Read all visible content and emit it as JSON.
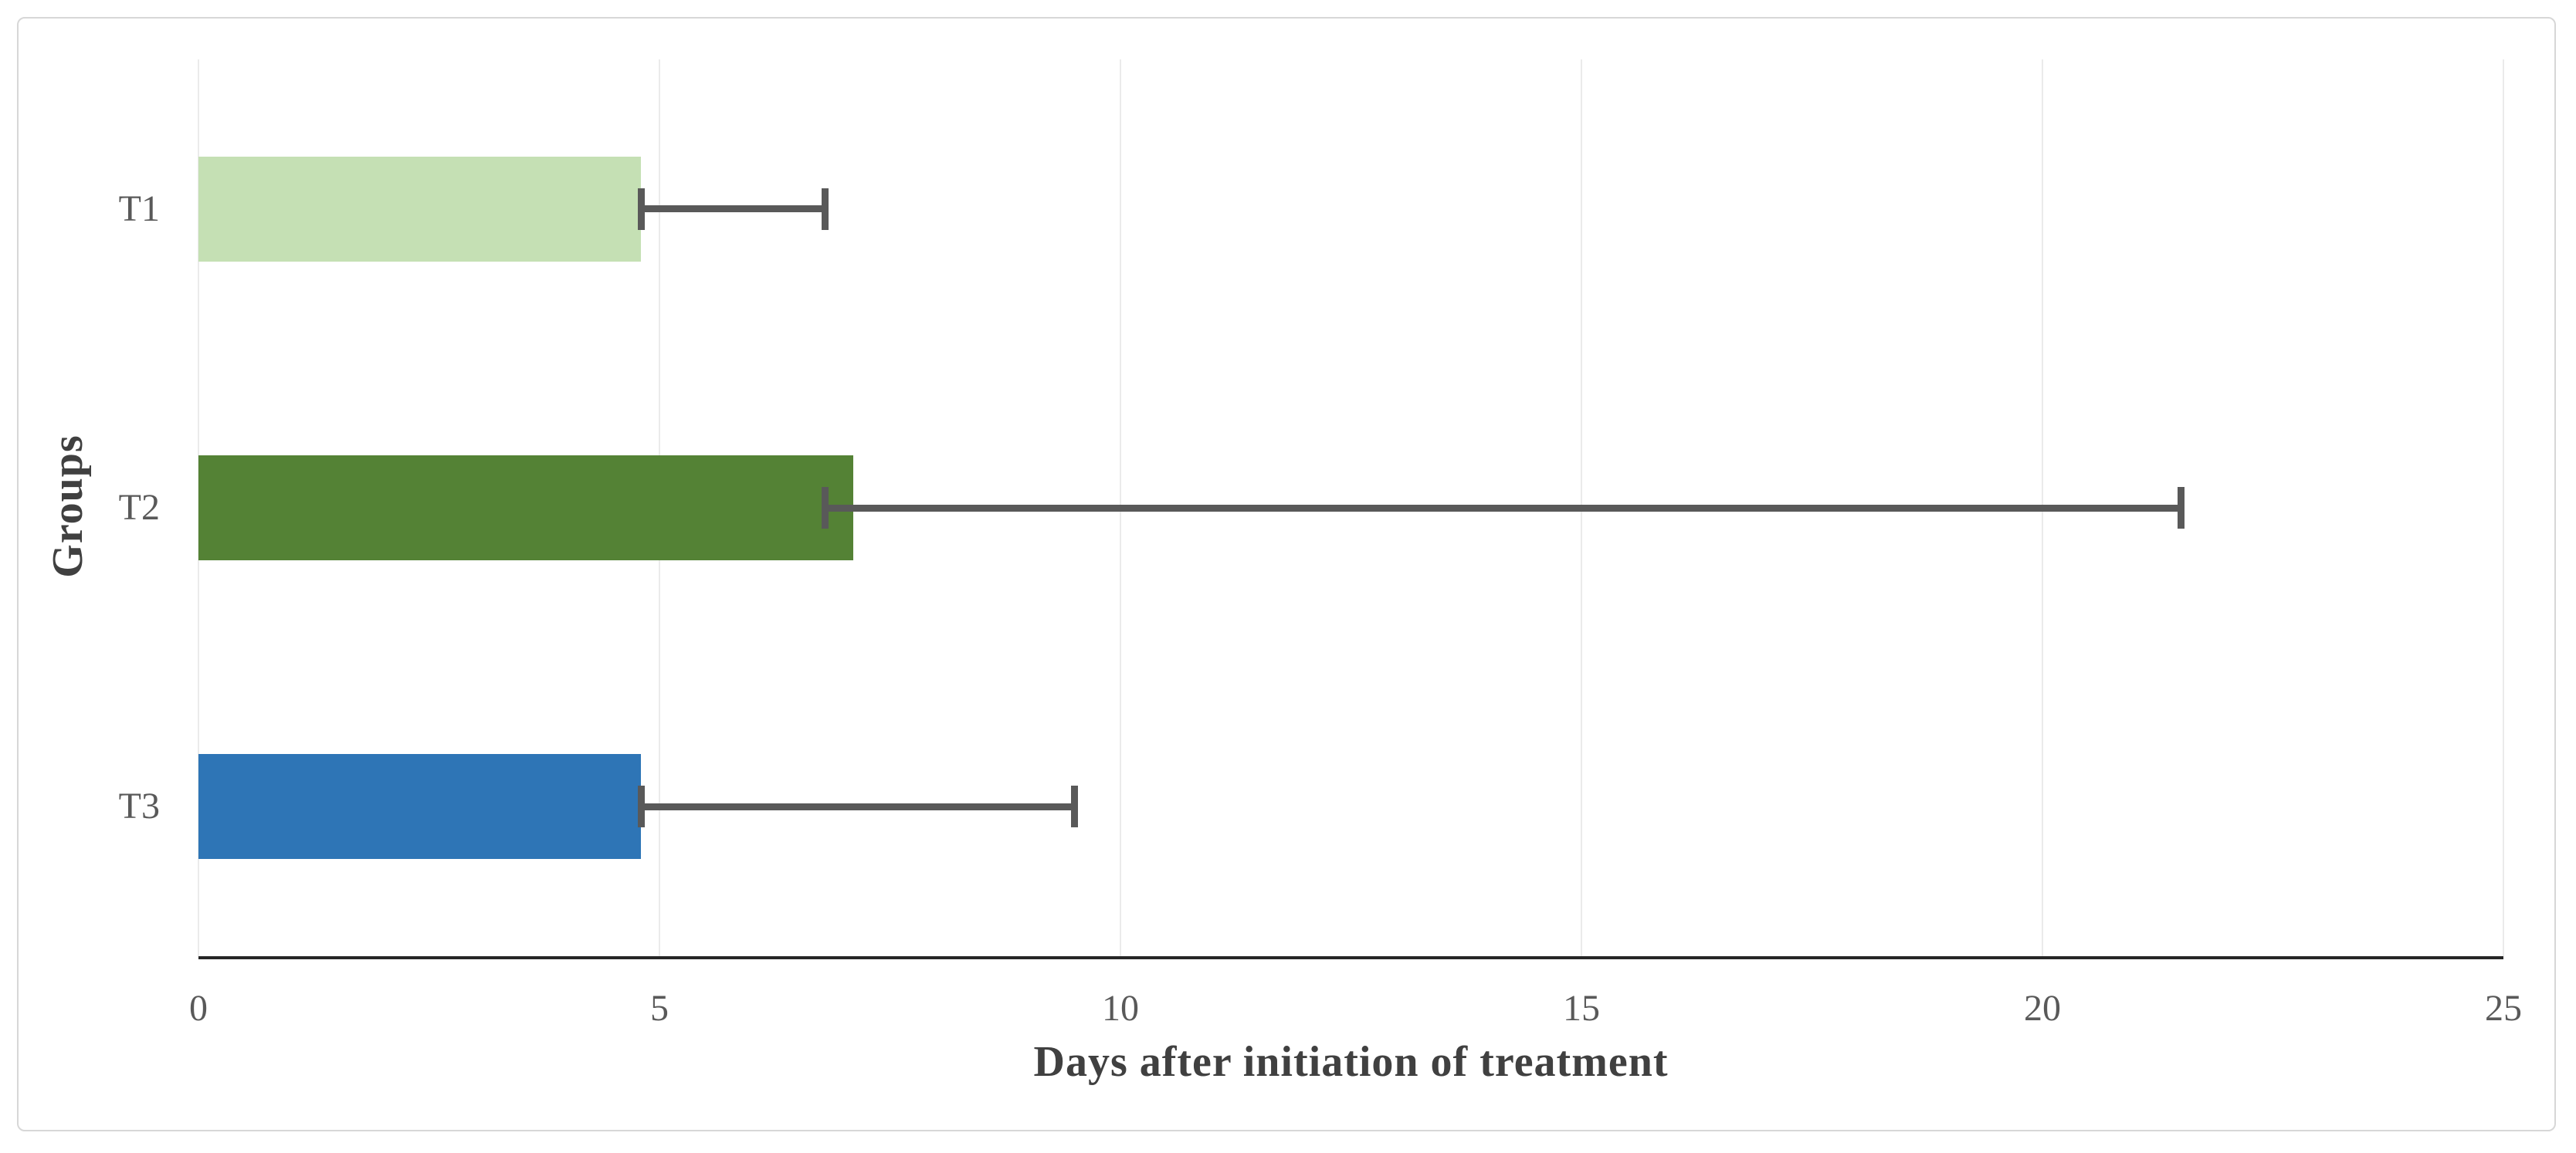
{
  "figure": {
    "background": "#ffffff",
    "border_color": "#d7d7d7"
  },
  "chart_data": {
    "type": "bar",
    "orientation": "horizontal",
    "title": "",
    "xlabel": "Days after initiation of treatment",
    "ylabel": "Groups",
    "categories": [
      "T1",
      "T2",
      "T3"
    ],
    "values": [
      4.8,
      7.1,
      4.8
    ],
    "error_bars": [
      {
        "from": 4.8,
        "to": 6.8
      },
      {
        "from": 6.8,
        "to": 21.5
      },
      {
        "from": 4.8,
        "to": 9.5
      }
    ],
    "xlim": [
      0,
      25
    ],
    "xticks": [
      0,
      5,
      10,
      15,
      20,
      25
    ],
    "grid": "vertical",
    "legend": "none",
    "bar_colors": [
      "#c5e0b4",
      "#548235",
      "#2e75b6"
    ],
    "error_bar_color": "#595959",
    "gridline_color": "#ebebeb",
    "axis_line_color": "#262626",
    "tick_label_color": "#595959",
    "axis_title_color": "#404040"
  }
}
